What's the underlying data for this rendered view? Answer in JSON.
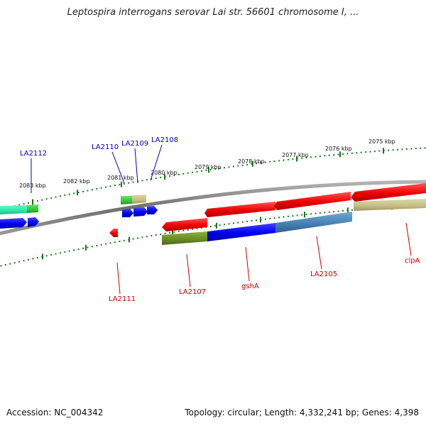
{
  "title": "Leptospira interrogans serovar Lai str. 56601 chromosome I, ...",
  "footer": {
    "accession": "Accession: NC_004342",
    "summary": "Topology: circular; Length: 4,332,241 bp; Genes: 4,398"
  },
  "tick_labels": [
    "2083 kbp",
    "2082 kbp",
    "2081 kbp",
    "2080 kbp",
    "2079 kbp",
    "2078 kbp",
    "2077 kbp",
    "2076 kbp",
    "2075 kbp"
  ],
  "gene_labels_forward": [
    "LA2112",
    "LA2110",
    "LA2109",
    "LA2108"
  ],
  "gene_labels_reverse": [
    "LA2111",
    "LA2107",
    "gshA",
    "LA2105",
    "clpA"
  ],
  "colors": {
    "backbone": "#808080",
    "tick": "#1a7a1a",
    "forward_label": "#0000bb",
    "reverse_label": "#cc0000",
    "red_feature": "#ee0000",
    "blue_feature": "#0000ee",
    "teal_feature": "#2ee8a8",
    "green_feature": "#33cc33",
    "khaki_feature": "#c8c088",
    "olive_feature": "#6b8e23",
    "steelblue_feature": "#4682b4"
  }
}
